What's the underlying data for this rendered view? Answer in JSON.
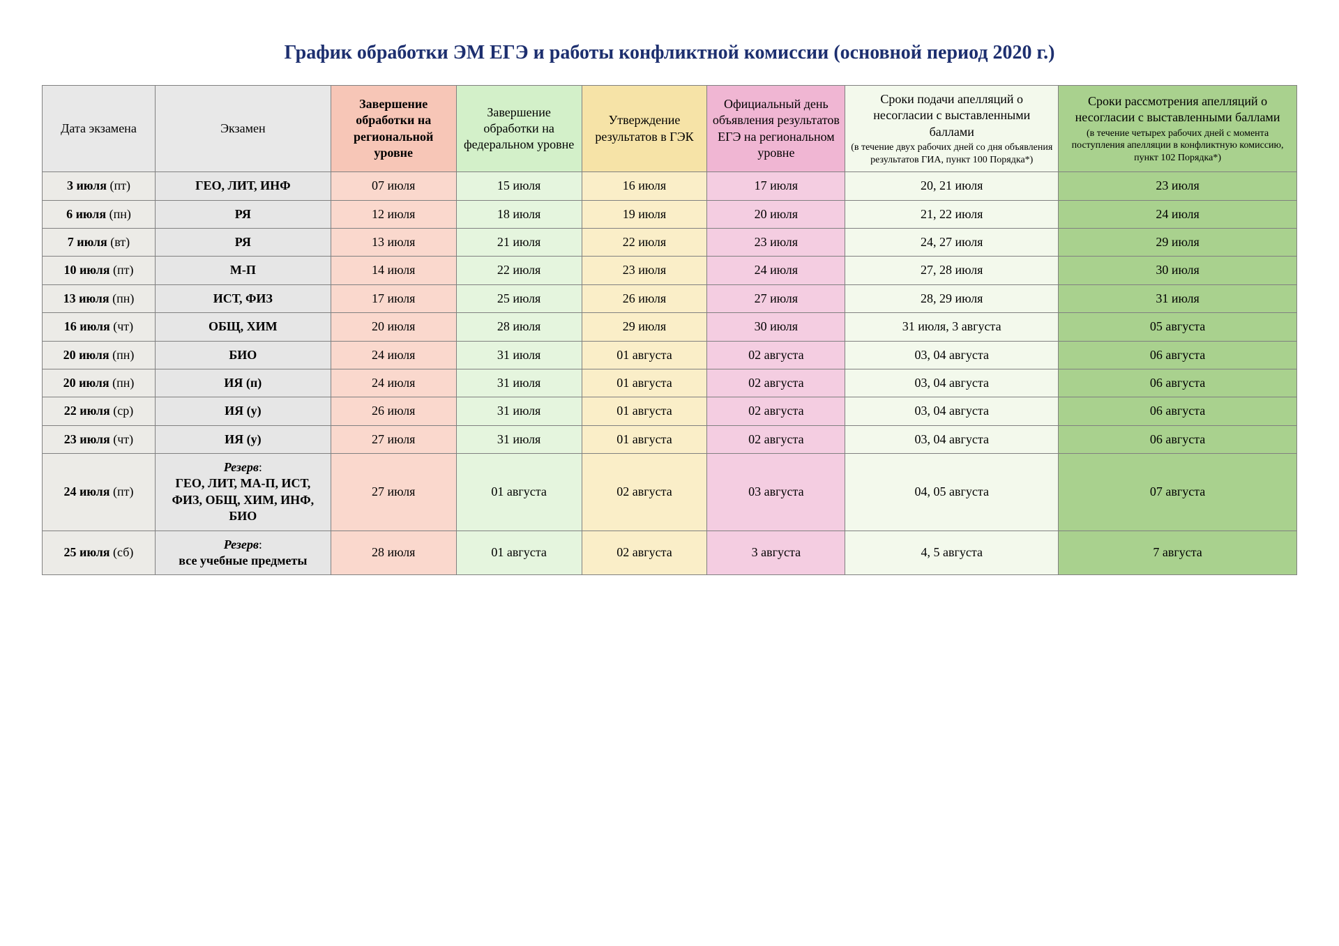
{
  "title": "График обработки ЭМ ЕГЭ и работы конфликтной комиссии (основной период 2020 г.)",
  "colors": {
    "title_text": "#1d2f6f",
    "border": "#808080",
    "header_bg": {
      "date": "#e8e8e8",
      "exam": "#e8e8e8",
      "c3": "#f7c6b7",
      "c4": "#d3f0c9",
      "c5": "#f6e3a7",
      "c6": "#f0b6d3",
      "c7": "#f3f9ec",
      "c8": "#a9d18e"
    },
    "body_bg": {
      "date": "#ecebe7",
      "exam": "#e6e6e6",
      "c3": "#fad8cd",
      "c4": "#e5f5de",
      "c5": "#faeec8",
      "c6": "#f4cde1",
      "c7": "#f3f9ec",
      "c8": "#a9d18e"
    }
  },
  "headers": {
    "date": "Дата экзамена",
    "exam": "Экзамен",
    "c3": "Завершение обработки на региональной уровне",
    "c4": "Завершение обработки на федеральном уровне",
    "c5": "Утверждение результатов в ГЭК",
    "c6": "Официальный день объявления результатов ЕГЭ на региональном уровне",
    "c7_main": "Сроки подачи апелляций о несогласии с выставленными баллами",
    "c7_note": "(в течение двух рабочих дней со дня объявления результатов ГИА, пункт 100 Порядка*)",
    "c8_main": "Сроки рассмотрения апелляций о несогласии с выставленными баллами",
    "c8_note": "(в течение четырех рабочих дней с момента поступления апелляции в конфликтную комиссию, пункт 102 Порядка*)"
  },
  "rows": [
    {
      "date_main": "3 июля",
      "dow": "(пт)",
      "exam": "ГЕО, ЛИТ, ИНФ",
      "exam_bold": true,
      "c3": "07 июля",
      "c4": "15 июля",
      "c5": "16 июля",
      "c6": "17 июля",
      "c7": "20, 21 июля",
      "c8": "23 июля"
    },
    {
      "date_main": "6 июля",
      "dow": "(пн)",
      "exam": "РЯ",
      "exam_bold": true,
      "c3": "12 июля",
      "c4": "18 июля",
      "c5": "19 июля",
      "c6": "20 июля",
      "c7": "21, 22 июля",
      "c8": "24 июля"
    },
    {
      "date_main": "7 июля",
      "dow": "(вт)",
      "exam": "РЯ",
      "exam_bold": true,
      "c3": "13 июля",
      "c4": "21 июля",
      "c5": "22 июля",
      "c6": "23 июля",
      "c7": "24, 27 июля",
      "c8": "29 июля"
    },
    {
      "date_main": "10 июля",
      "dow": "(пт)",
      "exam": "М-П",
      "exam_bold": true,
      "c3": "14 июля",
      "c4": "22 июля",
      "c5": "23 июля",
      "c6": "24 июля",
      "c7": "27, 28 июля",
      "c8": "30 июля"
    },
    {
      "date_main": "13 июля",
      "dow": "(пн)",
      "exam": "ИСТ, ФИЗ",
      "exam_bold": true,
      "c3": "17 июля",
      "c4": "25 июля",
      "c5": "26 июля",
      "c6": "27 июля",
      "c7": "28, 29 июля",
      "c8": "31 июля"
    },
    {
      "date_main": "16 июля",
      "dow": "(чт)",
      "exam": "ОБЩ, ХИМ",
      "exam_bold": true,
      "c3": "20 июля",
      "c4": "28 июля",
      "c5": "29 июля",
      "c6": "30 июля",
      "c7": "31 июля, 3 августа",
      "c8": "05 августа"
    },
    {
      "date_main": "20 июля",
      "dow": "(пн)",
      "exam": "БИО",
      "exam_bold": true,
      "c3": "24 июля",
      "c4": "31 июля",
      "c5": "01 августа",
      "c6": "02 августа",
      "c7": "03, 04 августа",
      "c8": "06 августа"
    },
    {
      "date_main": "20 июля",
      "dow": "(пн)",
      "exam": "ИЯ (п)",
      "exam_bold": true,
      "c3": "24 июля",
      "c4": "31 июля",
      "c5": "01 августа",
      "c6": "02 августа",
      "c7": "03, 04 августа",
      "c8": "06 августа"
    },
    {
      "date_main": "22 июля",
      "dow": "(ср)",
      "exam": "ИЯ (у)",
      "exam_bold": true,
      "c3": "26 июля",
      "c4": "31 июля",
      "c5": "01 августа",
      "c6": "02 августа",
      "c7": "03, 04 августа",
      "c8": "06 августа"
    },
    {
      "date_main": "23 июля",
      "dow": "(чт)",
      "exam": "ИЯ (у)",
      "exam_bold": true,
      "c3": "27 июля",
      "c4": "31 июля",
      "c5": "01 августа",
      "c6": "02 августа",
      "c7": "03, 04 августа",
      "c8": "06 августа"
    },
    {
      "date_main": "24 июля",
      "dow": "(пт)",
      "reserve_label": "Резерв",
      "exam": "ГЕО, ЛИТ, МА-П, ИСТ, ФИЗ, ОБЩ, ХИМ, ИНФ, БИО",
      "exam_bold": true,
      "c3": "27 июля",
      "c4": "01 августа",
      "c5": "02 августа",
      "c6": "03 августа",
      "c7": "04, 05 августа",
      "c8": "07 августа"
    },
    {
      "date_main": "25 июля",
      "dow": "(сб)",
      "reserve_label": "Резерв",
      "exam": "все учебные предметы",
      "exam_bold": true,
      "c3": "28 июля",
      "c4": "01 августа",
      "c5": "02 августа",
      "c6": "3 августа",
      "c7": "4, 5 августа",
      "c8": "7 августа"
    }
  ]
}
